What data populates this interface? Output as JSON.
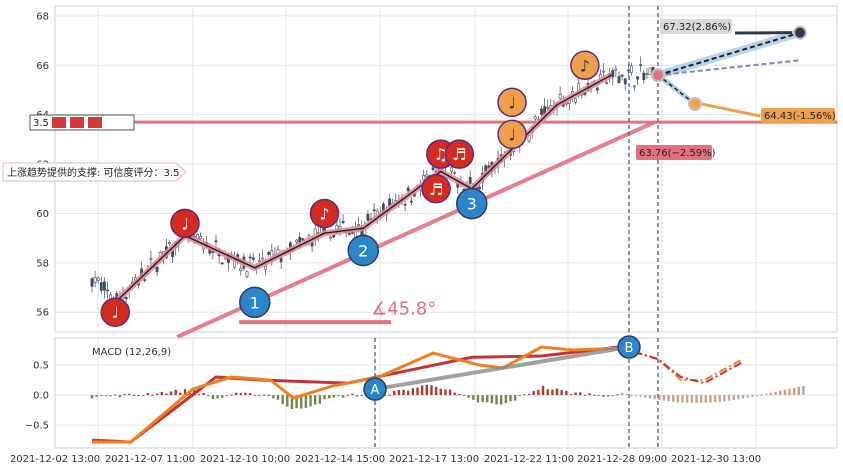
{
  "chart_data": [
    {
      "type": "candlestick",
      "panel": "price",
      "ylim": [
        55.2,
        68.4
      ],
      "y_ticks": [
        "56",
        "58",
        "60",
        "62",
        "64",
        "66",
        "68"
      ],
      "x_ticks": [
        "2021-12-02 13:00",
        "2021-12-07 11:00",
        "2021-12-10 10:00",
        "2021-12-14 15:00",
        "2021-12-17 13:00",
        "2021-12-22 11:00",
        "2021-12-28 09:00",
        "2021-12-30 13:00"
      ],
      "price_path": [
        {
          "bar": 0,
          "y": 57.4
        },
        {
          "bar": 15,
          "y": 56.4
        },
        {
          "bar": 60,
          "y": 59.1
        },
        {
          "bar": 105,
          "y": 57.8
        },
        {
          "bar": 150,
          "y": 59.2
        },
        {
          "bar": 175,
          "y": 59.5
        },
        {
          "bar": 225,
          "y": 61.7
        },
        {
          "bar": 245,
          "y": 61.0
        },
        {
          "bar": 300,
          "y": 64.5
        },
        {
          "bar": 335,
          "y": 65.6
        },
        {
          "bar": 360,
          "y": 65.6
        }
      ],
      "support_line_level": 63.7,
      "support_label_short": "3.5",
      "support_label": "上涨趋势提供的支撑: 可信度评分：3.5",
      "angle_label": "∡45.8°",
      "forecasts": [
        {
          "label": "67.32(2.86%)",
          "value": 67.32
        },
        {
          "label": "64.43(-1.56%)",
          "value": 64.43
        },
        {
          "label": "63.76(−2.59%)",
          "value": 63.76
        }
      ],
      "wave_markers": [
        {
          "label": "1",
          "kind": "wave",
          "bar": 105,
          "value": 56.4
        },
        {
          "label": "2",
          "kind": "wave",
          "bar": 175,
          "value": 58.5
        },
        {
          "label": "3",
          "kind": "wave",
          "bar": 245,
          "value": 60.4
        }
      ],
      "note_markers": [
        {
          "glyph": "♩",
          "bar": 15,
          "value": 56.0,
          "color": "red"
        },
        {
          "glyph": "♩",
          "bar": 60,
          "value": 59.6,
          "color": "red"
        },
        {
          "glyph": "♪",
          "bar": 150,
          "value": 60.0,
          "color": "red"
        },
        {
          "glyph": "♫",
          "bar": 225,
          "value": 62.4,
          "color": "red"
        },
        {
          "glyph": "♬",
          "bar": 237,
          "value": 62.4,
          "color": "red"
        },
        {
          "glyph": "♬",
          "bar": 222,
          "value": 61.0,
          "color": "red"
        },
        {
          "glyph": "♩",
          "bar": 271,
          "value": 64.5,
          "color": "orange"
        },
        {
          "glyph": "♩",
          "bar": 271,
          "value": 63.2,
          "color": "orange"
        },
        {
          "glyph": "♪",
          "bar": 318,
          "value": 66.0,
          "color": "orange"
        }
      ]
    },
    {
      "type": "line",
      "panel": "macd",
      "title": "MACD (12,26,9)",
      "ylim": [
        -0.88,
        0.95
      ],
      "y_ticks": [
        "0.5",
        "0.0",
        "−0.5"
      ],
      "markers": [
        "A",
        "B"
      ],
      "macd_line": [
        {
          "bar": 0,
          "y": -0.78
        },
        {
          "bar": 25,
          "y": -0.78
        },
        {
          "bar": 65,
          "y": 0.1
        },
        {
          "bar": 90,
          "y": 0.3
        },
        {
          "bar": 115,
          "y": 0.25
        },
        {
          "bar": 130,
          "y": -0.05
        },
        {
          "bar": 155,
          "y": 0.15
        },
        {
          "bar": 185,
          "y": 0.3
        },
        {
          "bar": 220,
          "y": 0.7
        },
        {
          "bar": 250,
          "y": 0.5
        },
        {
          "bar": 265,
          "y": 0.45
        },
        {
          "bar": 290,
          "y": 0.8
        },
        {
          "bar": 310,
          "y": 0.75
        },
        {
          "bar": 340,
          "y": 0.78
        }
      ],
      "signal_line": [
        {
          "bar": 0,
          "y": -0.75
        },
        {
          "bar": 25,
          "y": -0.78
        },
        {
          "bar": 80,
          "y": 0.3
        },
        {
          "bar": 110,
          "y": 0.25
        },
        {
          "bar": 165,
          "y": 0.2
        },
        {
          "bar": 245,
          "y": 0.63
        },
        {
          "bar": 290,
          "y": 0.65
        },
        {
          "bar": 340,
          "y": 0.8
        }
      ],
      "macd_forecast": [
        {
          "bar": 340,
          "y": 0.78
        },
        {
          "bar": 365,
          "y": 0.6
        },
        {
          "bar": 380,
          "y": 0.25
        },
        {
          "bar": 395,
          "y": 0.25
        },
        {
          "bar": 420,
          "y": 0.6
        }
      ],
      "signal_forecast": [
        {
          "bar": 340,
          "y": 0.8
        },
        {
          "bar": 365,
          "y": 0.6
        },
        {
          "bar": 380,
          "y": 0.3
        },
        {
          "bar": 395,
          "y": 0.2
        },
        {
          "bar": 420,
          "y": 0.55
        }
      ]
    }
  ]
}
